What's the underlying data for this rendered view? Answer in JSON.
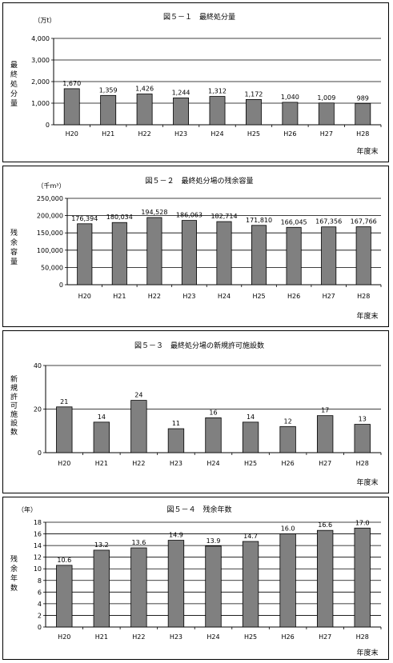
{
  "chart_data": [
    {
      "type": "bar",
      "title": "図５－１　最終処分量",
      "unit": "（万t）",
      "ylabel": "最終処分量",
      "xlabel": "年度末",
      "categories": [
        "H20",
        "H21",
        "H22",
        "H23",
        "H24",
        "H25",
        "H26",
        "H27",
        "H28"
      ],
      "values": [
        1670,
        1359,
        1426,
        1244,
        1312,
        1172,
        1040,
        1009,
        989
      ],
      "value_labels": [
        "1,670",
        "1,359",
        "1,426",
        "1,244",
        "1,312",
        "1,172",
        "1,040",
        "1,009",
        "989"
      ],
      "ylim": [
        0,
        4000
      ],
      "yticks": [
        0,
        1000,
        2000,
        3000,
        4000
      ],
      "ytick_labels": [
        "0",
        "1,000",
        "2,000",
        "3,000",
        "4,000"
      ],
      "bar_color": "#808080",
      "grid": true
    },
    {
      "type": "bar",
      "title": "図５－２　最終処分場の残余容量",
      "unit": "（千m³）",
      "ylabel": "残余容量",
      "xlabel": "年度末",
      "categories": [
        "H20",
        "H21",
        "H22",
        "H23",
        "H24",
        "H25",
        "H26",
        "H27",
        "H28"
      ],
      "values": [
        176394,
        180034,
        194528,
        186063,
        182714,
        171810,
        166045,
        167356,
        167766
      ],
      "value_labels": [
        "176,394",
        "180,034",
        "194,528",
        "186,063",
        "182,714",
        "171,810",
        "166,045",
        "167,356",
        "167,766"
      ],
      "ylim": [
        0,
        250000
      ],
      "yticks": [
        0,
        50000,
        100000,
        150000,
        200000,
        250000
      ],
      "ytick_labels": [
        "0",
        "50,000",
        "100,000",
        "150,000",
        "200,000",
        "250,000"
      ],
      "bar_color": "#808080",
      "grid": true
    },
    {
      "type": "bar",
      "title": "図５－３　最終処分場の新規許可施設数",
      "unit": "",
      "ylabel": "新規許可施設数",
      "xlabel": "年度末",
      "categories": [
        "H20",
        "H21",
        "H22",
        "H23",
        "H24",
        "H25",
        "H26",
        "H27",
        "H28"
      ],
      "values": [
        21,
        14,
        24,
        11,
        16,
        14,
        12,
        17,
        13
      ],
      "value_labels": [
        "21",
        "14",
        "24",
        "11",
        "16",
        "14",
        "12",
        "17",
        "13"
      ],
      "ylim": [
        0,
        40
      ],
      "yticks": [
        0,
        20,
        40
      ],
      "ytick_labels": [
        "0",
        "20",
        "40"
      ],
      "bar_color": "#808080",
      "grid": true
    },
    {
      "type": "bar",
      "title": "図５－４　残余年数",
      "unit": "（年）",
      "ylabel": "残余年数",
      "xlabel": "年度末",
      "categories": [
        "H20",
        "H21",
        "H22",
        "H23",
        "H24",
        "H25",
        "H26",
        "H27",
        "H28"
      ],
      "values": [
        10.6,
        13.2,
        13.6,
        14.9,
        13.9,
        14.7,
        16.0,
        16.6,
        17.0
      ],
      "value_labels": [
        "10.6",
        "13.2",
        "13.6",
        "14.9",
        "13.9",
        "14.7",
        "16.0",
        "16.6",
        "17.0"
      ],
      "ylim": [
        0,
        18
      ],
      "yticks": [
        0,
        2,
        4,
        6,
        8,
        10,
        12,
        14,
        16,
        18
      ],
      "ytick_labels": [
        "0",
        "2",
        "4",
        "6",
        "8",
        "10",
        "12",
        "14",
        "16",
        "18"
      ],
      "bar_color": "#808080",
      "grid": true
    }
  ]
}
